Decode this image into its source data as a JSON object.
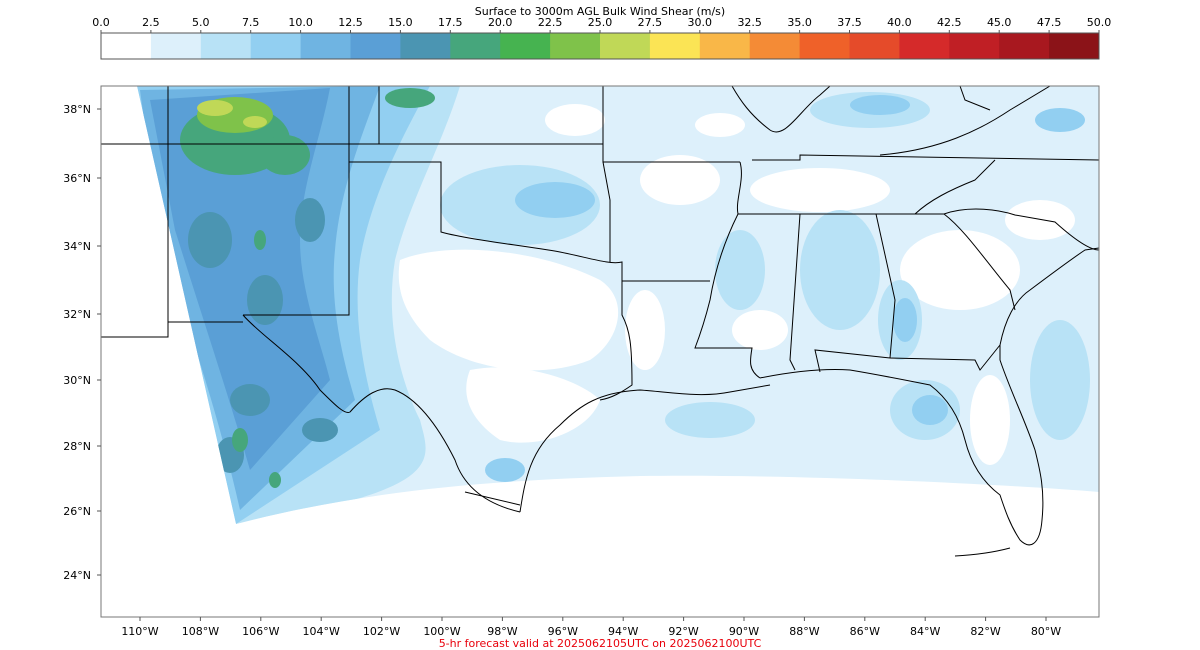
{
  "colorbar": {
    "title": "Surface to 3000m AGL Bulk Wind Shear (m/s)",
    "ticks": [
      "0.0",
      "2.5",
      "5.0",
      "7.5",
      "10.0",
      "12.5",
      "15.0",
      "17.5",
      "20.0",
      "22.5",
      "25.0",
      "27.5",
      "30.0",
      "32.5",
      "35.0",
      "37.5",
      "40.0",
      "42.5",
      "45.0",
      "47.5",
      "50.0"
    ],
    "colors": [
      "#ffffff",
      "#ddf0fb",
      "#b8e2f6",
      "#92cff1",
      "#6fb4e2",
      "#5a9fd6",
      "#4b95b2",
      "#46a67c",
      "#46b350",
      "#7fc24a",
      "#c0d857",
      "#fbe455",
      "#f9b748",
      "#f48b36",
      "#ef6129",
      "#e54b2a",
      "#d52a2a",
      "#c01f25",
      "#a8181f",
      "#8b1318"
    ]
  },
  "map": {
    "lat_labels": [
      "38°N",
      "36°N",
      "34°N",
      "32°N",
      "30°N",
      "28°N",
      "26°N",
      "24°N"
    ],
    "lon_labels": [
      "110°W",
      "108°W",
      "106°W",
      "104°W",
      "102°W",
      "100°W",
      "98°W",
      "96°W",
      "94°W",
      "92°W",
      "90°W",
      "88°W",
      "86°W",
      "84°W",
      "82°W",
      "80°W"
    ],
    "field_colors": {
      "very_light": "#ddf0fb",
      "light": "#b8e2f6",
      "mid": "#92cff1",
      "dark": "#6fb4e2",
      "darker": "#5a9fd6",
      "teal": "#4b95b2",
      "green": "#46a67c",
      "yellowgreen": "#c0d857"
    }
  },
  "footer": {
    "valid_text": "5-hr forecast valid at 2025062105UTC on 2025062100UTC",
    "valid_color": "#e8000b"
  }
}
